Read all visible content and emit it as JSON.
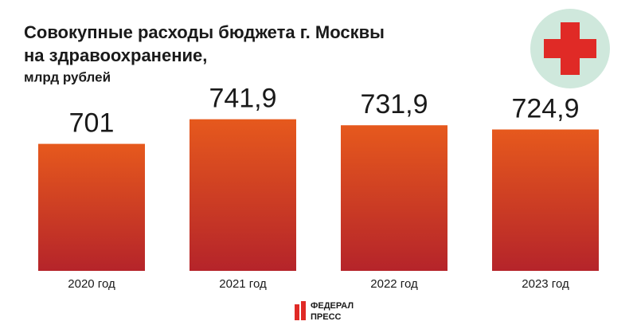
{
  "chart_data": {
    "type": "bar",
    "title_lines": [
      "Совокупные расходы бюджета г. Москвы",
      "на здравоохранение,"
    ],
    "subtitle": "млрд рублей",
    "categories": [
      "2020 год",
      "2021 год",
      "2022 год",
      "2023 год"
    ],
    "values": [
      701,
      741.9,
      731.9,
      724.9
    ],
    "value_labels": [
      "701",
      "741,9",
      "731,9",
      "724,9"
    ],
    "color": "#d93c22",
    "ylim": [
      490,
      760
    ],
    "grid": false
  },
  "logo": {
    "lines": [
      "ФЕДЕРАЛ",
      "ПРЕСС"
    ]
  }
}
